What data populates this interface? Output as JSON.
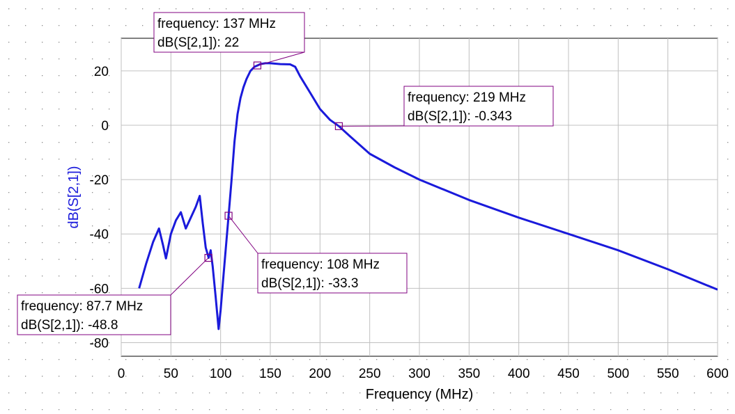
{
  "chart_data": {
    "type": "line",
    "xlabel": "Frequency (MHz)",
    "ylabel": "dB(S[2,1])",
    "xlim": [
      0,
      600
    ],
    "ylim": [
      -85,
      32
    ],
    "x_ticks": [
      0,
      50,
      100,
      150,
      200,
      250,
      300,
      350,
      400,
      450,
      500,
      550,
      600
    ],
    "y_ticks": [
      -80,
      -60,
      -40,
      -20,
      0,
      20
    ],
    "grid": true,
    "line_color": "#1a1adb",
    "marker_color": "#800080",
    "series": [
      {
        "x": [
          18,
          25,
          32,
          38,
          42,
          45,
          50,
          55,
          60,
          65,
          70,
          75,
          79,
          82,
          85,
          88,
          90,
          92,
          95,
          98,
          100,
          103,
          106,
          108,
          111,
          114,
          117,
          120,
          123,
          126,
          130,
          134,
          137,
          140,
          145,
          150,
          160,
          170,
          175,
          180,
          190,
          200,
          210,
          219,
          230,
          250,
          275,
          300,
          350,
          400,
          450,
          500,
          550,
          600
        ],
        "y": [
          -60,
          -51,
          -43,
          -38,
          -44,
          -49,
          -40,
          -35,
          -32,
          -38,
          -34,
          -30,
          -26,
          -36,
          -45,
          -48.8,
          -46,
          -52,
          -63,
          -75,
          -68,
          -55,
          -42,
          -33.3,
          -20,
          -6,
          4,
          10,
          14,
          17,
          20,
          21.5,
          22,
          22.5,
          22.8,
          22.8,
          22.5,
          22.4,
          21.5,
          18,
          12,
          6,
          2,
          -0.343,
          -4,
          -10.5,
          -15.5,
          -20,
          -27.5,
          -34,
          -40,
          -46,
          -53,
          -60.5
        ]
      }
    ],
    "annotations": [
      {
        "x": 137,
        "y": 22,
        "line1": "frequency: 137 MHz",
        "line2": "dB(S[2,1]): 22"
      },
      {
        "x": 219,
        "y": -0.343,
        "line1": "frequency: 219 MHz",
        "line2": "dB(S[2,1]): -0.343"
      },
      {
        "x": 108,
        "y": -33.3,
        "line1": "frequency: 108 MHz",
        "line2": "dB(S[2,1]): -33.3"
      },
      {
        "x": 87.7,
        "y": -48.8,
        "line1": "frequency: 87.7 MHz",
        "line2": "dB(S[2,1]): -48.8"
      }
    ]
  }
}
